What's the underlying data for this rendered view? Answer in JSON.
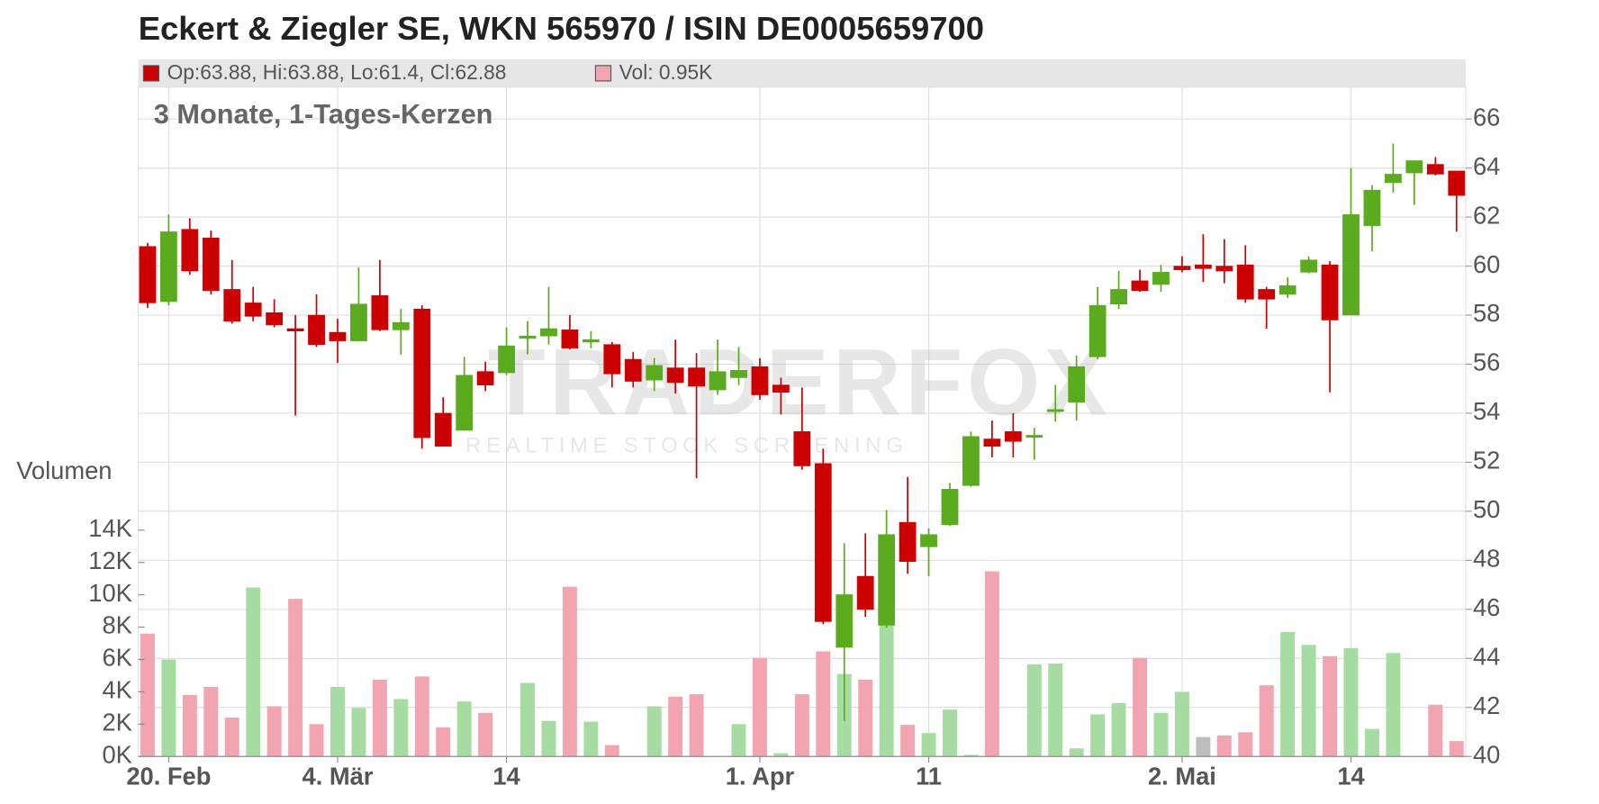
{
  "chart_data": {
    "type": "candlestick",
    "title": "Eckert & Ziegler SE, WKN 565970 / ISIN DE0005659700",
    "subtitle": "3 Monate, 1-Tages-Kerzen",
    "header": {
      "ohlc": "Op:63.88, Hi:63.88, Lo:61.4, Cl:62.88",
      "ohlc_color": "#cc0000",
      "vol": "Vol: 0.95K",
      "vol_color": "#f2a5b0"
    },
    "watermark": [
      "TRADERFOX",
      "REALTIME STOCK SCREENING"
    ],
    "categories": [
      null,
      "20. Feb",
      null,
      null,
      null,
      null,
      null,
      null,
      null,
      "4. Mär",
      null,
      null,
      null,
      null,
      null,
      null,
      null,
      "14",
      null,
      null,
      null,
      null,
      null,
      null,
      null,
      null,
      null,
      null,
      null,
      "1. Apr",
      null,
      null,
      null,
      null,
      null,
      null,
      null,
      "11",
      null,
      null,
      null,
      null,
      null,
      null,
      null,
      null,
      null,
      null,
      null,
      "2. Mai",
      null,
      null,
      null,
      null,
      null,
      null,
      null,
      "14",
      null,
      null,
      null,
      null,
      null
    ],
    "open": [
      60.8,
      58.55,
      61.5,
      61.15,
      59.05,
      58.5,
      58.1,
      57.45,
      58.0,
      57.3,
      56.95,
      58.8,
      57.4,
      58.25,
      54.0,
      53.3,
      55.7,
      55.65,
      57.05,
      57.15,
      57.4,
      56.9,
      56.8,
      56.2,
      55.35,
      55.85,
      55.85,
      54.95,
      55.45,
      55.9,
      55.15,
      53.25,
      51.95,
      44.45,
      47.35,
      45.35,
      49.55,
      48.55,
      49.45,
      51.05,
      52.95,
      53.25,
      53.05,
      54.1,
      54.45,
      56.3,
      58.45,
      59.4,
      59.25,
      60.0,
      60.05,
      60.0,
      60.05,
      59.05,
      58.85,
      59.75,
      60.05,
      58.0,
      61.65,
      63.4,
      63.8,
      64.15,
      63.88
    ],
    "high": [
      60.95,
      62.1,
      61.95,
      61.45,
      60.25,
      59.15,
      58.65,
      58.0,
      58.85,
      57.85,
      59.95,
      60.25,
      58.25,
      58.4,
      54.65,
      56.3,
      56.1,
      57.5,
      57.75,
      59.15,
      58.0,
      57.35,
      56.9,
      56.5,
      56.25,
      57.0,
      56.45,
      57.0,
      56.7,
      56.25,
      55.45,
      55.05,
      52.55,
      48.7,
      49.1,
      50.05,
      51.4,
      49.3,
      51.15,
      53.25,
      53.7,
      54.0,
      53.4,
      55.15,
      56.35,
      59.15,
      59.8,
      59.85,
      60.05,
      60.4,
      61.3,
      61.1,
      60.85,
      59.15,
      59.55,
      60.4,
      60.2,
      64.0,
      63.3,
      65.0,
      64.3,
      64.45,
      63.88
    ],
    "low": [
      58.3,
      58.4,
      59.65,
      58.85,
      57.65,
      57.75,
      57.5,
      53.9,
      56.7,
      56.05,
      56.95,
      57.35,
      56.4,
      52.55,
      52.65,
      53.3,
      54.9,
      55.55,
      56.4,
      56.8,
      56.6,
      56.65,
      55.05,
      55.05,
      54.9,
      54.8,
      51.35,
      54.75,
      55.15,
      54.55,
      53.95,
      51.7,
      45.4,
      41.45,
      45.7,
      45.25,
      47.45,
      47.35,
      49.4,
      51.0,
      52.2,
      52.2,
      52.1,
      53.65,
      53.7,
      56.2,
      58.25,
      58.95,
      58.95,
      59.75,
      59.35,
      59.3,
      58.5,
      57.45,
      58.7,
      59.7,
      54.85,
      58.0,
      60.6,
      63.0,
      62.5,
      63.7,
      61.4
    ],
    "close": [
      58.5,
      61.4,
      59.8,
      59.0,
      57.75,
      57.95,
      57.6,
      57.35,
      56.8,
      56.95,
      58.45,
      57.4,
      57.7,
      53.0,
      52.65,
      55.55,
      55.15,
      56.75,
      57.15,
      57.45,
      56.65,
      57.0,
      55.6,
      55.3,
      55.95,
      55.25,
      55.1,
      55.7,
      55.75,
      54.75,
      54.85,
      51.85,
      45.5,
      46.6,
      46.0,
      49.05,
      47.95,
      49.05,
      50.9,
      53.05,
      52.65,
      52.85,
      53.1,
      54.15,
      55.9,
      58.4,
      59.05,
      59.0,
      59.75,
      59.85,
      59.9,
      59.8,
      58.65,
      58.65,
      59.2,
      60.25,
      57.8,
      62.1,
      63.1,
      63.75,
      64.3,
      63.75,
      62.88
    ],
    "up_color": "#5aab1e",
    "down_color": "#cc0000",
    "ylim": [
      40,
      67.3
    ],
    "yticks": [
      40,
      42,
      44,
      46,
      48,
      50,
      52,
      54,
      56,
      58,
      60,
      62,
      64,
      66
    ],
    "grid": true,
    "volume": {
      "label": "Volumen",
      "values": [
        7600,
        6000,
        3800,
        4300,
        2400,
        10450,
        3100,
        9750,
        2000,
        4300,
        3000,
        4750,
        3550,
        4950,
        1800,
        3400,
        2700,
        null,
        4550,
        2200,
        10500,
        2150,
        700,
        null,
        3100,
        3700,
        3850,
        null,
        2000,
        6100,
        200,
        3850,
        6500,
        5100,
        4750,
        8100,
        1950,
        1450,
        2900,
        100,
        11450,
        null,
        5700,
        5750,
        500,
        2600,
        3300,
        6100,
        2700,
        4000,
        1200,
        1300,
        1500,
        4400,
        7700,
        6900,
        6200,
        6700,
        1700,
        6400,
        null,
        3200,
        950
      ],
      "colors": [
        "#f2a5b0",
        "#a6dca2",
        "#f2a5b0",
        "#f2a5b0",
        "#f2a5b0",
        "#a6dca2",
        "#f2a5b0",
        "#f2a5b0",
        "#f2a5b0",
        "#a6dca2",
        "#a6dca2",
        "#f2a5b0",
        "#a6dca2",
        "#f2a5b0",
        "#f2a5b0",
        "#a6dca2",
        "#f2a5b0",
        null,
        "#a6dca2",
        "#a6dca2",
        "#f2a5b0",
        "#a6dca2",
        "#f2a5b0",
        null,
        "#a6dca2",
        "#f2a5b0",
        "#f2a5b0",
        null,
        "#a6dca2",
        "#f2a5b0",
        "#a6dca2",
        "#f2a5b0",
        "#f2a5b0",
        "#a6dca2",
        "#f2a5b0",
        "#a6dca2",
        "#f2a5b0",
        "#a6dca2",
        "#a6dca2",
        "#a6dca2",
        "#f2a5b0",
        null,
        "#a6dca2",
        "#a6dca2",
        "#a6dca2",
        "#a6dca2",
        "#a6dca2",
        "#f2a5b0",
        "#a6dca2",
        "#a6dca2",
        "#bdbdbd",
        "#f2a5b0",
        "#f2a5b0",
        "#f2a5b0",
        "#a6dca2",
        "#a6dca2",
        "#f2a5b0",
        "#a6dca2",
        "#a6dca2",
        "#a6dca2",
        null,
        "#f2a5b0",
        "#f2a5b0"
      ],
      "ylim": [
        0,
        41400
      ],
      "yticks": [
        {
          "value": 0,
          "label": "0K"
        },
        {
          "value": 2000,
          "label": "2K"
        },
        {
          "value": 4000,
          "label": "4K"
        },
        {
          "value": 6000,
          "label": "6K"
        },
        {
          "value": 8000,
          "label": "8K"
        },
        {
          "value": 10000,
          "label": "10K"
        },
        {
          "value": 12000,
          "label": "12K"
        },
        {
          "value": 14000,
          "label": "14K"
        }
      ]
    }
  }
}
